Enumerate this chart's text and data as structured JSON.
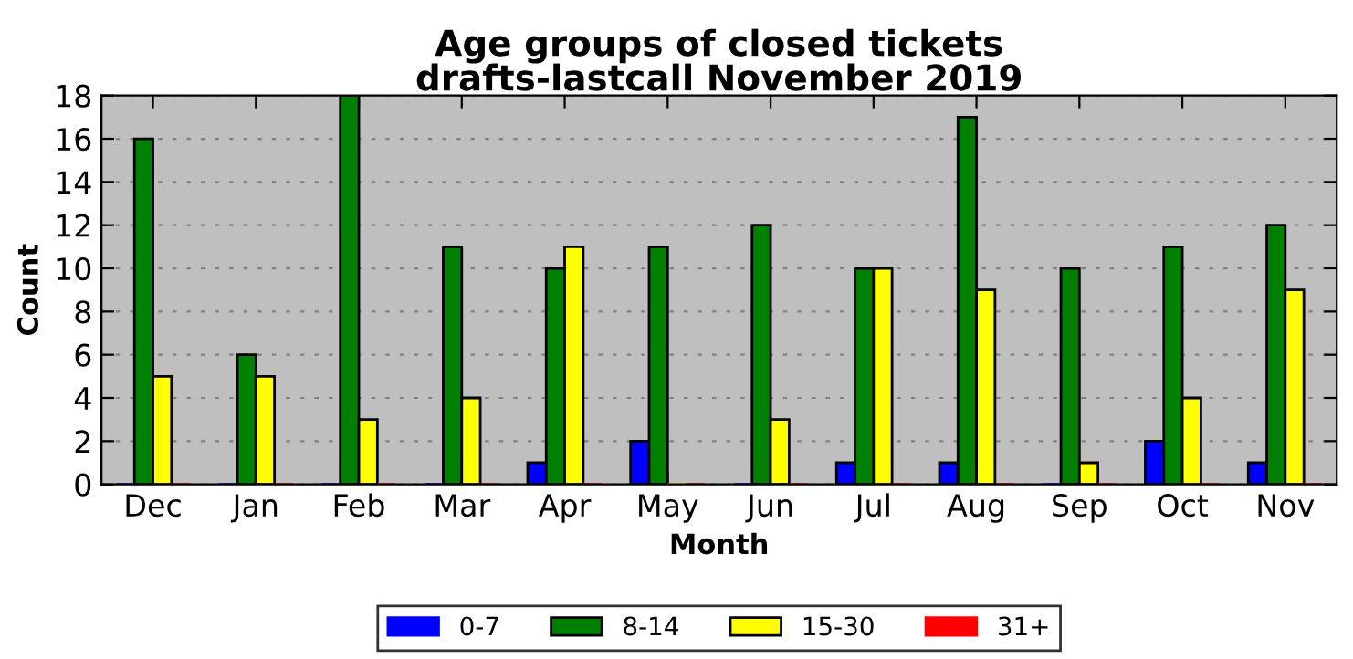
{
  "chart_data": {
    "type": "bar",
    "title": "Age groups of closed tickets\ndrafts-lastcall November 2019",
    "xlabel": "Month",
    "ylabel": "Count",
    "categories": [
      "Dec",
      "Jan",
      "Feb",
      "Mar",
      "Apr",
      "May",
      "Jun",
      "Jul",
      "Aug",
      "Sep",
      "Oct",
      "Nov"
    ],
    "series": [
      {
        "name": "0-7",
        "color": "#0000ff",
        "values": [
          0,
          0,
          0,
          0,
          1,
          2,
          0,
          1,
          1,
          0,
          2,
          1
        ]
      },
      {
        "name": "8-14",
        "color": "#008000",
        "values": [
          16,
          6,
          18,
          11,
          10,
          11,
          12,
          10,
          17,
          10,
          11,
          12
        ]
      },
      {
        "name": "15-30",
        "color": "#ffff00",
        "values": [
          5,
          5,
          3,
          4,
          11,
          0,
          3,
          10,
          9,
          1,
          4,
          9
        ]
      },
      {
        "name": "31+",
        "color": "#ff0000",
        "values": [
          0,
          0,
          0,
          0,
          0,
          0,
          0,
          0,
          0,
          0,
          0,
          0
        ]
      }
    ],
    "ylim": [
      0,
      18
    ],
    "yticks": [
      0,
      2,
      4,
      6,
      8,
      10,
      12,
      14,
      16,
      18
    ],
    "grid": "y",
    "legend": "bottom"
  }
}
